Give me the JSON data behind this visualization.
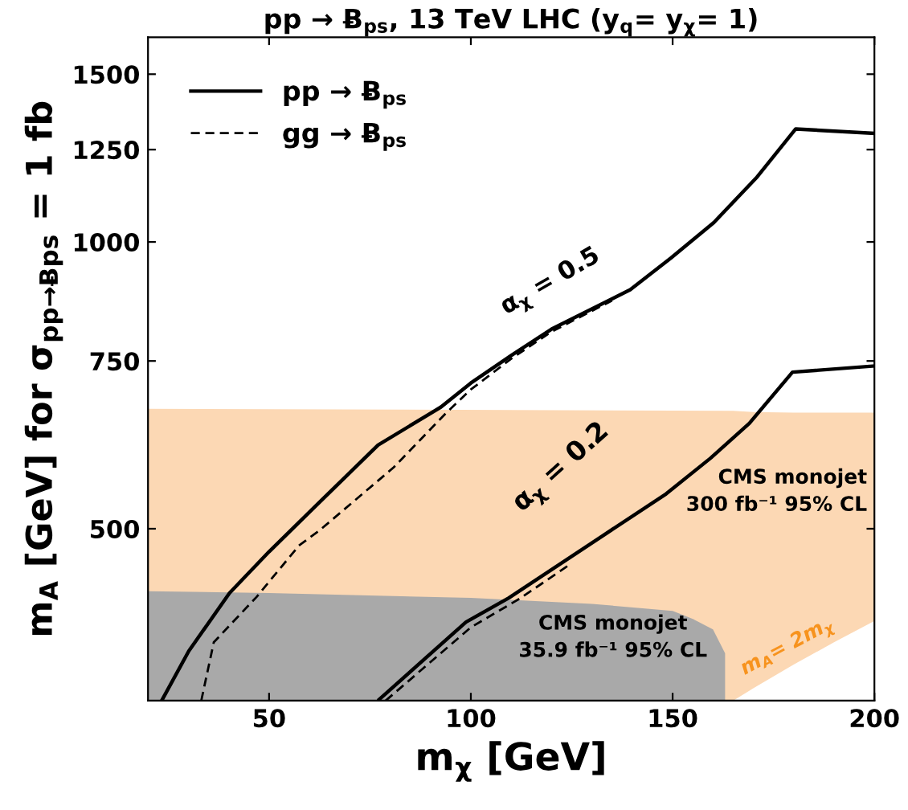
{
  "chart_data": {
    "type": "line",
    "title": "pp → Ƀ$_{ps}$, 13 TeV LHC (y$_{q}$= y$_{χ}$= 1)",
    "xlabel": "m$_{χ}$ [GeV]",
    "ylabel": "m$_{A}$ [GeV] for σ$_{pp→Ƀps}$ = 1 fb",
    "log": "y",
    "xlim": [
      20,
      200
    ],
    "xticks": [
      50,
      100,
      150,
      200
    ],
    "ylim": [
      330,
      1640
    ],
    "yticks": [
      500,
      750,
      1000,
      1250,
      1500
    ],
    "grid": false,
    "legend": "top left",
    "series": [
      {
        "type": "area",
        "color": "#fcd8b4",
        "x": [
          20,
          165,
          170,
          180,
          190,
          200
        ],
        "values": [
          668,
          665,
          663,
          662,
          662,
          662
        ]
      },
      {
        "type": "area",
        "color": "#ffffff",
        "x": [
          165,
          170,
          180,
          190,
          200
        ],
        "values": [
          330,
          340,
          360,
          380,
          400
        ]
      },
      {
        "type": "area",
        "color": "#a9a9a9",
        "x": [
          20,
          50,
          100,
          130,
          150,
          155,
          160,
          163
        ],
        "values": [
          430,
          428,
          423,
          417,
          410,
          402,
          392,
          370
        ]
      },
      {
        "name": "pp → Ƀ$_{ps}$",
        "color": "#000000",
        "line_style": "solid",
        "x": [
          23.4,
          30.1,
          40.2,
          50,
          61.3,
          77,
          92.6,
          100,
          110,
          120,
          139.5,
          149.6,
          160.2,
          170.7,
          180.5,
          200
        ],
        "values": [
          330,
          372,
          428,
          473,
          527,
          612,
          671,
          711,
          760,
          810,
          891,
          962,
          1048,
          1167,
          1314,
          1300
        ]
      },
      {
        "name": "gg → Ƀ$_{ps}$",
        "color": "#000000",
        "line_style": "dashed",
        "x": [
          33.2,
          36.3,
          46.9,
          57.4,
          62.5,
          80.9,
          93.8,
          100,
          110,
          120,
          135
        ],
        "values": [
          330,
          380,
          424,
          480,
          498,
          580,
          661,
          700,
          754,
          805,
          868
        ]
      },
      {
        "color": "#000000",
        "line_style": "solid",
        "x": [
          77.3,
          98.8,
          109.4,
          132.8,
          148.4,
          159.4,
          169,
          179.7,
          200
        ],
        "values": [
          331,
          399,
          423,
          492,
          544,
          593,
          645,
          730,
          741
        ]
      },
      {
        "color": "#000000",
        "line_style": "dashed",
        "x": [
          78.9,
          100,
          112,
          125
        ],
        "values": [
          330,
          394,
          422,
          460
        ]
      }
    ],
    "annotations": [
      "α$_{χ}$ = 0.5",
      "α$_{χ}$ = 0.2",
      "CMS monojet\n300 fb⁻¹ 95% CL",
      "CMS monojet\n35.9 fb⁻¹ 95% CL",
      "m$_{A}$= 2m$_{χ}$"
    ]
  }
}
